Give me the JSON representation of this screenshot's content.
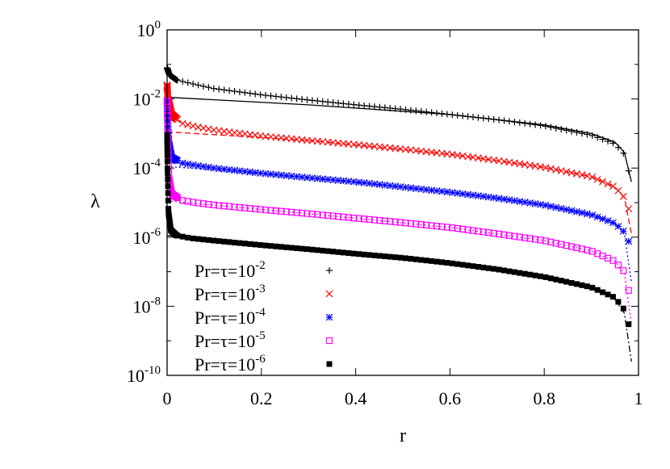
{
  "chart_data": {
    "type": "scatter",
    "title": "",
    "xlabel": "r",
    "ylabel": "λ",
    "xlim": [
      0,
      1
    ],
    "ylim_log10": [
      -10,
      0
    ],
    "y_scale": "log",
    "x_ticks": [
      "0",
      "0.2",
      "0.4",
      "0.6",
      "0.8",
      "1"
    ],
    "y_ticks": [
      {
        "base": "10",
        "exp": "0"
      },
      {
        "base": "10",
        "exp": "-2"
      },
      {
        "base": "10",
        "exp": "-4"
      },
      {
        "base": "10",
        "exp": "-6"
      },
      {
        "base": "10",
        "exp": "-8"
      },
      {
        "base": "10",
        "exp": "-10"
      }
    ],
    "legend_position": "bottom-left",
    "series": [
      {
        "name_base": "Pr=τ=10",
        "name_exp": "-2",
        "color": "#000000",
        "marker": "plus",
        "line_dash": "solid",
        "points": [
          [
            0.0,
            -1.1
          ],
          [
            0.005,
            -1.3
          ],
          [
            0.02,
            -1.45
          ],
          [
            0.05,
            -1.55
          ],
          [
            0.1,
            -1.7
          ],
          [
            0.2,
            -1.88
          ],
          [
            0.3,
            -2.03
          ],
          [
            0.4,
            -2.17
          ],
          [
            0.5,
            -2.3
          ],
          [
            0.6,
            -2.45
          ],
          [
            0.7,
            -2.6
          ],
          [
            0.8,
            -2.78
          ],
          [
            0.9,
            -3.05
          ],
          [
            0.95,
            -3.3
          ],
          [
            0.97,
            -3.6
          ],
          [
            0.985,
            -4.4
          ]
        ],
        "fit_line": [
          [
            0.0,
            -1.95
          ],
          [
            0.3,
            -2.17
          ],
          [
            0.6,
            -2.45
          ],
          [
            0.8,
            -2.75
          ],
          [
            0.9,
            -3.0
          ],
          [
            0.95,
            -3.25
          ],
          [
            0.97,
            -3.55
          ],
          [
            0.985,
            -4.4
          ]
        ]
      },
      {
        "name_base": "Pr=τ=10",
        "name_exp": "-3",
        "color": "#ff0000",
        "marker": "cross",
        "line_dash": "dashed",
        "points": [
          [
            0.0,
            -1.6
          ],
          [
            0.002,
            -2.0
          ],
          [
            0.01,
            -2.45
          ],
          [
            0.03,
            -2.7
          ],
          [
            0.06,
            -2.8
          ],
          [
            0.1,
            -2.9
          ],
          [
            0.2,
            -3.07
          ],
          [
            0.3,
            -3.2
          ],
          [
            0.4,
            -3.32
          ],
          [
            0.5,
            -3.45
          ],
          [
            0.6,
            -3.6
          ],
          [
            0.7,
            -3.78
          ],
          [
            0.8,
            -3.98
          ],
          [
            0.9,
            -4.25
          ],
          [
            0.95,
            -4.55
          ],
          [
            0.97,
            -4.85
          ],
          [
            0.985,
            -5.4
          ]
        ],
        "fit_line": [
          [
            0.0,
            -2.95
          ],
          [
            0.3,
            -3.2
          ],
          [
            0.6,
            -3.6
          ],
          [
            0.8,
            -3.98
          ],
          [
            0.9,
            -4.25
          ],
          [
            0.95,
            -4.55
          ],
          [
            0.97,
            -4.85
          ],
          [
            0.985,
            -5.9
          ]
        ]
      },
      {
        "name_base": "Pr=τ=10",
        "name_exp": "-4",
        "color": "#0000ff",
        "marker": "star",
        "line_dash": "dotted",
        "points": [
          [
            0.0,
            -2.05
          ],
          [
            0.001,
            -2.5
          ],
          [
            0.004,
            -3.3
          ],
          [
            0.01,
            -3.7
          ],
          [
            0.03,
            -3.85
          ],
          [
            0.06,
            -3.92
          ],
          [
            0.1,
            -4.0
          ],
          [
            0.2,
            -4.15
          ],
          [
            0.3,
            -4.28
          ],
          [
            0.4,
            -4.4
          ],
          [
            0.5,
            -4.55
          ],
          [
            0.6,
            -4.7
          ],
          [
            0.7,
            -4.87
          ],
          [
            0.8,
            -5.07
          ],
          [
            0.9,
            -5.35
          ],
          [
            0.95,
            -5.6
          ],
          [
            0.97,
            -5.85
          ],
          [
            0.985,
            -6.3
          ]
        ],
        "fit_line": [
          [
            0.0,
            -3.95
          ],
          [
            0.3,
            -4.28
          ],
          [
            0.6,
            -4.7
          ],
          [
            0.8,
            -5.07
          ],
          [
            0.9,
            -5.35
          ],
          [
            0.95,
            -5.6
          ],
          [
            0.97,
            -5.9
          ],
          [
            0.985,
            -7.3
          ]
        ]
      },
      {
        "name_base": "Pr=τ=10",
        "name_exp": "-5",
        "color": "#ff00ff",
        "marker": "box",
        "line_dash": "dotted",
        "points": [
          [
            0.0,
            -2.05
          ],
          [
            0.001,
            -3.0
          ],
          [
            0.004,
            -4.3
          ],
          [
            0.01,
            -4.75
          ],
          [
            0.03,
            -4.93
          ],
          [
            0.06,
            -5.0
          ],
          [
            0.1,
            -5.07
          ],
          [
            0.2,
            -5.2
          ],
          [
            0.3,
            -5.32
          ],
          [
            0.4,
            -5.45
          ],
          [
            0.5,
            -5.58
          ],
          [
            0.6,
            -5.72
          ],
          [
            0.7,
            -5.9
          ],
          [
            0.8,
            -6.1
          ],
          [
            0.9,
            -6.4
          ],
          [
            0.95,
            -6.7
          ],
          [
            0.97,
            -7.0
          ],
          [
            0.985,
            -7.9
          ]
        ],
        "fit_line": [
          [
            0.0,
            -4.95
          ],
          [
            0.3,
            -5.32
          ],
          [
            0.6,
            -5.72
          ],
          [
            0.8,
            -6.1
          ],
          [
            0.9,
            -6.4
          ],
          [
            0.95,
            -6.7
          ],
          [
            0.97,
            -7.05
          ],
          [
            0.985,
            -8.5
          ]
        ]
      },
      {
        "name_base": "Pr=τ=10",
        "name_exp": "-6",
        "color": "#000000",
        "marker": "filled-box",
        "line_dash": "dash-dot",
        "points": [
          [
            0.0,
            -3.05
          ],
          [
            0.001,
            -4.0
          ],
          [
            0.003,
            -5.3
          ],
          [
            0.008,
            -5.8
          ],
          [
            0.02,
            -5.95
          ],
          [
            0.05,
            -6.03
          ],
          [
            0.1,
            -6.1
          ],
          [
            0.2,
            -6.23
          ],
          [
            0.3,
            -6.35
          ],
          [
            0.4,
            -6.48
          ],
          [
            0.5,
            -6.6
          ],
          [
            0.6,
            -6.75
          ],
          [
            0.7,
            -6.93
          ],
          [
            0.8,
            -7.15
          ],
          [
            0.9,
            -7.45
          ],
          [
            0.95,
            -7.75
          ],
          [
            0.97,
            -8.1
          ],
          [
            0.985,
            -8.8
          ]
        ],
        "fit_line": [
          [
            0.0,
            -5.95
          ],
          [
            0.3,
            -6.35
          ],
          [
            0.6,
            -6.75
          ],
          [
            0.8,
            -7.15
          ],
          [
            0.9,
            -7.45
          ],
          [
            0.95,
            -7.8
          ],
          [
            0.97,
            -8.2
          ],
          [
            0.985,
            -9.6
          ]
        ]
      }
    ]
  }
}
